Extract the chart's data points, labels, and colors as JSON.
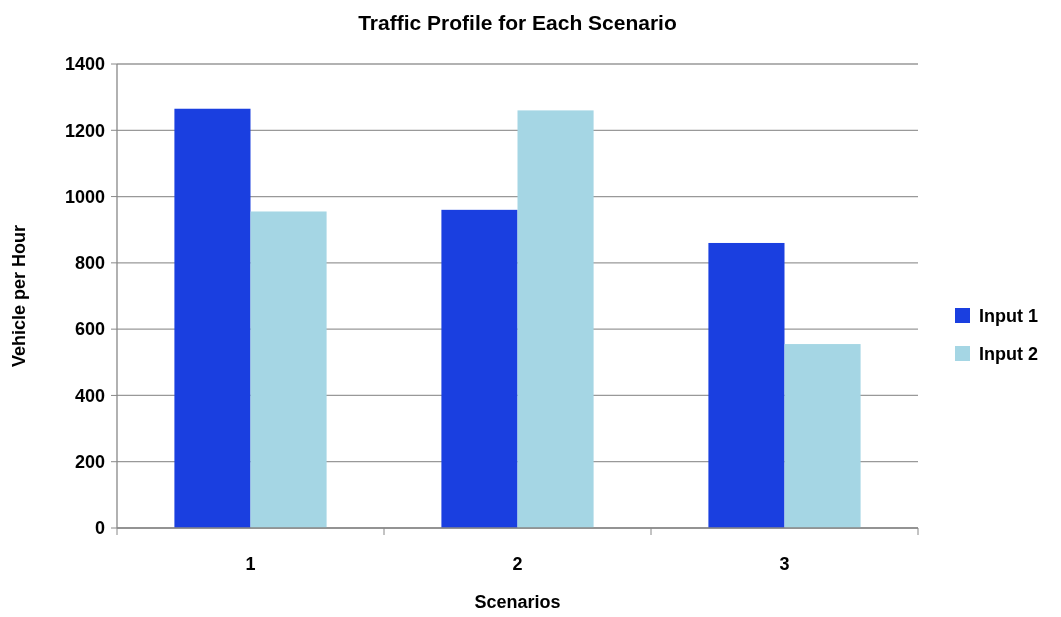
{
  "chart_data": {
    "type": "bar",
    "title": "Traffic Profile for Each Scenario",
    "xlabel": "Scenarios",
    "ylabel": "Vehicle per Hour",
    "categories": [
      "1",
      "2",
      "3"
    ],
    "series": [
      {
        "name": "Input 1",
        "color": "#1a3fe0",
        "values": [
          1265,
          960,
          860
        ]
      },
      {
        "name": "Input 2",
        "color": "#a5d6e4",
        "values": [
          955,
          1260,
          555
        ]
      }
    ],
    "ylim": [
      0,
      1400
    ],
    "yticks": [
      0,
      200,
      400,
      600,
      800,
      1000,
      1200,
      1400
    ],
    "grid": "y",
    "legend": "right"
  }
}
